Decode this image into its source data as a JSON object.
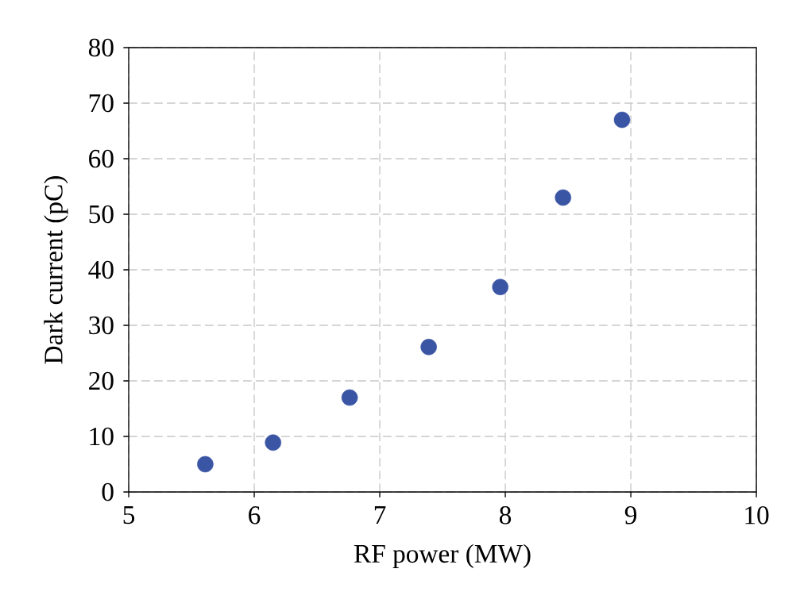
{
  "chart_data": {
    "type": "scatter",
    "xlabel": "RF power (MW)",
    "ylabel": "Dark current (pC)",
    "series": [
      {
        "color": "#3a55a4",
        "x": [
          5.61,
          6.15,
          6.76,
          7.39,
          7.96,
          8.46,
          8.93
        ],
        "values": [
          5.0,
          8.9,
          17.0,
          26.1,
          36.9,
          53.0,
          67.0
        ]
      }
    ],
    "xlim": [
      5,
      10
    ],
    "ylim": [
      0,
      80
    ],
    "xticks": [
      5,
      6,
      7,
      8,
      9,
      10
    ],
    "yticks": [
      0,
      10,
      20,
      30,
      40,
      50,
      60,
      70,
      80
    ],
    "grid": true
  }
}
